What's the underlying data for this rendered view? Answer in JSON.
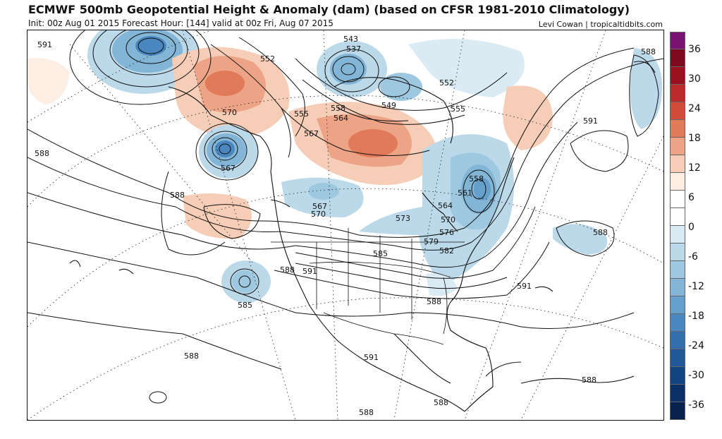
{
  "header": {
    "title": "ECMWF 500mb Geopotential Height & Anomaly (dam) (based on CFSR 1981-2010 Climatology)",
    "subtitle": "Init: 00z Aug 01 2015   Forecast Hour: [144]   valid at 00z Fri, Aug 07 2015",
    "credit": "Levi Cowan | tropicaltidbits.com"
  },
  "colorbar": {
    "labels": [
      "36",
      "30",
      "24",
      "18",
      "12",
      "6",
      "0",
      "-6",
      "-12",
      "-18",
      "-24",
      "-30",
      "-36"
    ],
    "colors": [
      "#7a1272",
      "#7d0a20",
      "#9b1020",
      "#bb2a2a",
      "#d14a3a",
      "#e07a58",
      "#eda486",
      "#f6cdb6",
      "#fdeee4",
      "#ffffff",
      "#ffffff",
      "#dbebf4",
      "#bcd9ea",
      "#9ec8e0",
      "#82b5d6",
      "#659fcb",
      "#4a87be",
      "#336fae",
      "#21589a",
      "#134482",
      "#0b3068",
      "#08214d"
    ]
  },
  "map": {
    "contour_labels": [
      {
        "text": "591"
      },
      {
        "text": "552"
      },
      {
        "text": "543"
      },
      {
        "text": "537"
      },
      {
        "text": "552"
      },
      {
        "text": "549"
      },
      {
        "text": "555"
      },
      {
        "text": "588"
      },
      {
        "text": "570"
      },
      {
        "text": "555"
      },
      {
        "text": "558"
      },
      {
        "text": "564"
      },
      {
        "text": "567"
      },
      {
        "text": "591"
      },
      {
        "text": "588"
      },
      {
        "text": "567"
      },
      {
        "text": "588"
      },
      {
        "text": "567"
      },
      {
        "text": "570"
      },
      {
        "text": "558"
      },
      {
        "text": "561"
      },
      {
        "text": "564"
      },
      {
        "text": "573"
      },
      {
        "text": "570"
      },
      {
        "text": "576"
      },
      {
        "text": "579"
      },
      {
        "text": "582"
      },
      {
        "text": "585"
      },
      {
        "text": "588"
      },
      {
        "text": "588"
      },
      {
        "text": "591"
      },
      {
        "text": "585"
      },
      {
        "text": "591"
      },
      {
        "text": "588"
      },
      {
        "text": "588"
      },
      {
        "text": "591"
      },
      {
        "text": "588"
      },
      {
        "text": "588"
      },
      {
        "text": "588"
      }
    ]
  }
}
